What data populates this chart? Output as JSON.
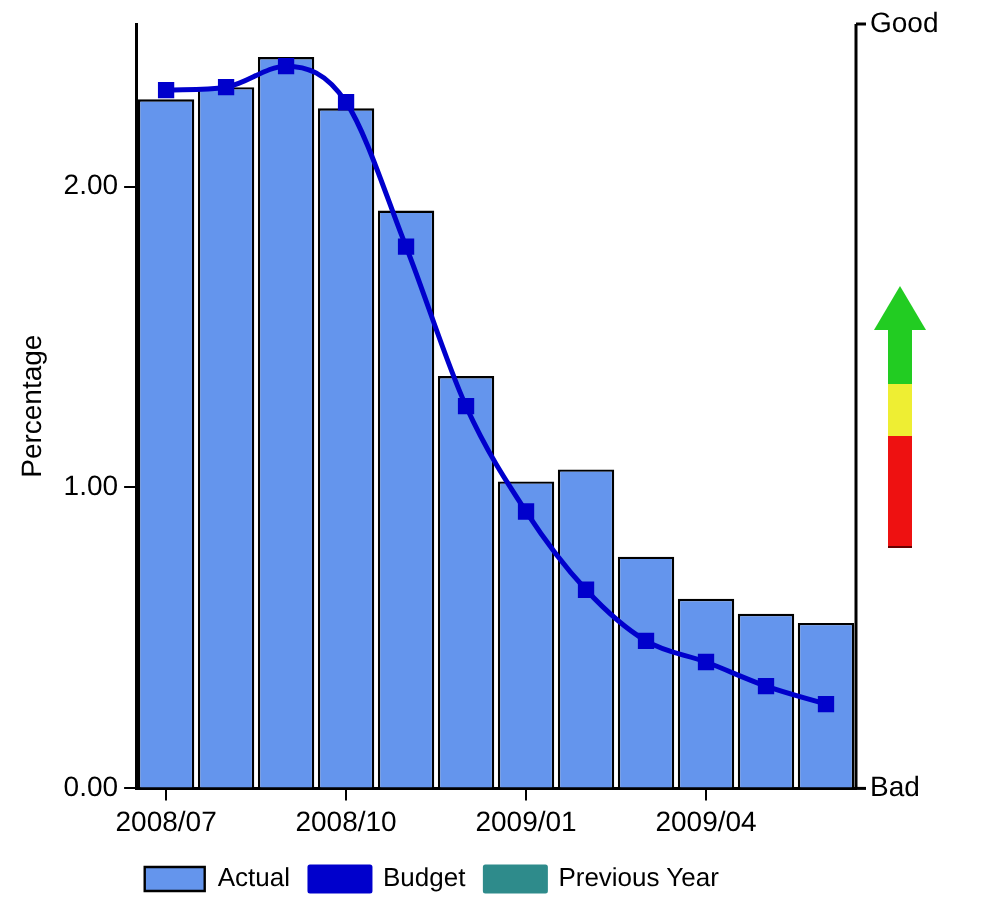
{
  "chart_data": {
    "type": "bar",
    "ylabel": "Percentage",
    "categories": [
      "2008/07",
      null,
      null,
      "2008/10",
      null,
      null,
      "2009/01",
      null,
      null,
      "2009/04",
      null,
      null
    ],
    "series": [
      {
        "name": "Actual",
        "color": "#6495ed",
        "values": [
          2.29,
          2.33,
          2.43,
          2.26,
          1.92,
          1.37,
          1.02,
          1.06,
          0.77,
          0.63,
          0.58,
          0.55
        ]
      },
      {
        "name": "Budget",
        "type": "line",
        "color": "#0000cc",
        "marker": "square",
        "values": [
          2.32,
          2.33,
          2.4,
          2.28,
          1.8,
          1.27,
          0.92,
          0.66,
          0.49,
          0.42,
          0.34,
          0.28
        ]
      },
      {
        "name": "Previous Year",
        "type": "line",
        "color": "#2e8b8b",
        "marker": "circle",
        "values": [
          null,
          null,
          null,
          null,
          null,
          null,
          null,
          null,
          null,
          null,
          null,
          null
        ]
      }
    ],
    "ylim": [
      0,
      2.54
    ],
    "yticks": [
      {
        "value": 0,
        "label": "0.00"
      },
      {
        "value": 1,
        "label": "1.00"
      },
      {
        "value": 2,
        "label": "2.00"
      }
    ],
    "annotations": [
      "Good",
      "Bad"
    ],
    "grid": false,
    "legend": "bottom"
  }
}
